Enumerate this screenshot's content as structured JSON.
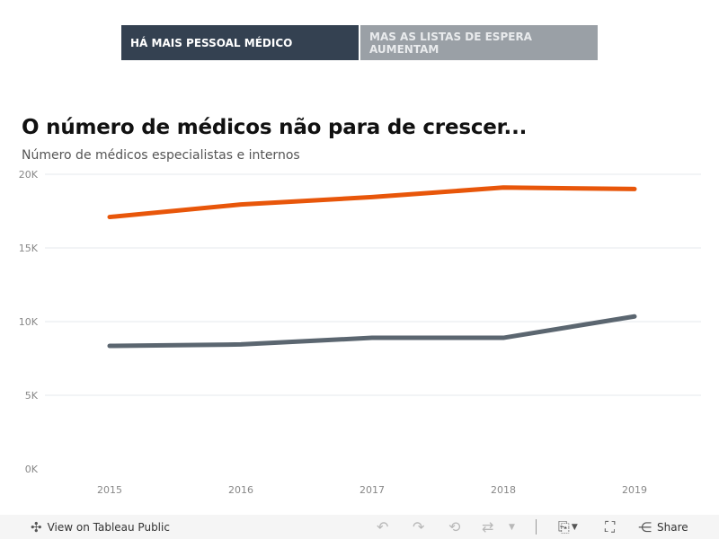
{
  "tabs": [
    {
      "label": "HÁ MAIS PESSOAL MÉDICO",
      "active": true
    },
    {
      "label": "MAS AS LISTAS DE ESPERA AUMENTAM",
      "active": false
    }
  ],
  "chart_data": {
    "type": "line",
    "title": "O número de médicos não para de crescer...",
    "subtitle": "Número de médicos especialistas e internos",
    "x": [
      "2015",
      "2016",
      "2017",
      "2018",
      "2019"
    ],
    "y_ticks": [
      "0K",
      "5K",
      "10K",
      "15K",
      "20K"
    ],
    "ylim": [
      0,
      20000
    ],
    "grid": true,
    "series": [
      {
        "color": "#e8560a",
        "values": [
          17100,
          17950,
          18450,
          19100,
          19000
        ]
      },
      {
        "color": "#5b6670",
        "values": [
          8350,
          8450,
          8900,
          8900,
          10350
        ]
      }
    ]
  },
  "footer": {
    "view_label": "View on Tableau Public",
    "share_label": "Share",
    "icons": [
      "tableau-icon",
      "undo-icon",
      "redo-icon",
      "revert-icon",
      "refresh-icon",
      "pause-icon",
      "download-icon",
      "fullscreen-icon",
      "share-icon"
    ]
  }
}
